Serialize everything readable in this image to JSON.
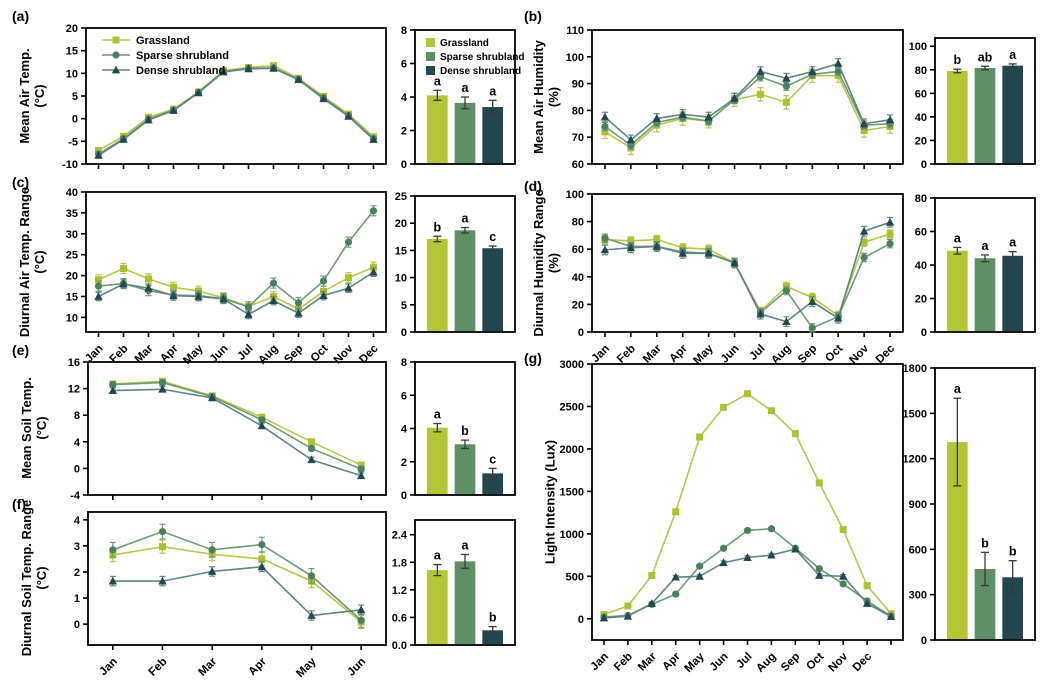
{
  "figure": {
    "background": "#ffffff"
  },
  "series_meta": [
    {
      "name": "Grassland",
      "marker": "square",
      "color": "#b4c636",
      "line_color": "#b9c64a",
      "marker_color": "#adc02f"
    },
    {
      "name": "Sparse shrubland",
      "marker": "circle",
      "color": "#5e8f67",
      "line_color": "#6e9b74",
      "marker_color": "#4c7f5e"
    },
    {
      "name": "Dense shrubland",
      "marker": "triangle",
      "color": "#24464e",
      "line_color": "#5f8585",
      "marker_color": "#24464e"
    }
  ],
  "chart_data": [
    {
      "id": "a",
      "label": "(a)",
      "ylabel": [
        "Mean Air Temp.",
        "(°C)"
      ],
      "line": {
        "type": "line",
        "show_xlabels": false,
        "legend": true,
        "x": [
          "Jan",
          "Feb",
          "Mar",
          "Apr",
          "May",
          "Jun",
          "Jul",
          "Aug",
          "Sep",
          "Oct",
          "Nov",
          "Dec"
        ],
        "ylim": [
          -10,
          20
        ],
        "yticks": [
          -10,
          -5,
          0,
          5,
          10,
          15,
          20
        ],
        "ydecimals": 0,
        "series": [
          {
            "name": "Grassland",
            "values": [
              -7.0,
              -3.9,
              0.3,
              2.1,
              5.9,
              10.6,
              11.3,
              11.7,
              8.9,
              4.9,
              1.0,
              -4.0
            ],
            "err": 0.5
          },
          {
            "name": "Sparse shrubland",
            "values": [
              -7.8,
              -4.4,
              -0.1,
              1.9,
              5.8,
              10.4,
              11.1,
              11.2,
              8.7,
              4.6,
              0.7,
              -4.4
            ],
            "err": 0.4
          },
          {
            "name": "Dense shrubland",
            "values": [
              -8.1,
              -4.6,
              -0.3,
              1.8,
              5.7,
              10.3,
              11.0,
              11.1,
              8.6,
              4.4,
              0.5,
              -4.6
            ],
            "err": 0.4
          }
        ]
      },
      "bar": {
        "type": "bar",
        "ylim": [
          0,
          8
        ],
        "yticks": [
          0,
          2,
          4,
          6,
          8
        ],
        "decimals": 0,
        "legend": true,
        "categories": [
          "Grassland",
          "Sparse shrubland",
          "Dense shrubland"
        ],
        "values": [
          4.1,
          3.65,
          3.4
        ],
        "err": [
          0.3,
          0.35,
          0.4
        ],
        "letters": [
          "a",
          "a",
          "a"
        ]
      }
    },
    {
      "id": "b",
      "label": "(b)",
      "ylabel": [
        "Mean Air Humidity",
        "(%)"
      ],
      "line": {
        "type": "line",
        "show_xlabels": false,
        "legend": false,
        "x": [
          "Jan",
          "Feb",
          "Mar",
          "Apr",
          "May",
          "Jun",
          "Jul",
          "Aug",
          "Sep",
          "Oct",
          "Nov",
          "Dec"
        ],
        "ylim": [
          60,
          110
        ],
        "yticks": [
          60,
          70,
          80,
          90,
          100,
          110
        ],
        "ydecimals": 0,
        "series": [
          {
            "name": "Grassland",
            "values": [
              72,
              66,
              74.5,
              77,
              76,
              84,
              86,
              83,
              93,
              93,
              72.5,
              74
            ],
            "err": 2.5
          },
          {
            "name": "Sparse shrubland",
            "values": [
              74,
              67,
              75.5,
              77.5,
              76,
              84,
              92.5,
              89,
              93.5,
              94.5,
              74.5,
              75
            ],
            "err": 1.5
          },
          {
            "name": "Dense shrubland",
            "values": [
              77.5,
              69,
              77,
              78.5,
              77.5,
              84.5,
              94.5,
              92,
              94.5,
              97.5,
              75,
              76.5
            ],
            "err": 1.8
          }
        ]
      },
      "bar": {
        "type": "bar",
        "ylim": [
          0,
          107
        ],
        "yticks": [
          0,
          20,
          40,
          60,
          80,
          100
        ],
        "decimals": 0,
        "legend": false,
        "categories": [
          "Grassland",
          "Sparse shrubland",
          "Dense shrubland"
        ],
        "values": [
          79,
          81.5,
          83.5
        ],
        "err": [
          1.5,
          1.5,
          1.5
        ],
        "letters": [
          "b",
          "ab",
          "a"
        ]
      }
    },
    {
      "id": "c",
      "label": "(c)",
      "ylabel": [
        "Diurnal Air Temp. Range",
        "(°C)"
      ],
      "line": {
        "type": "line",
        "show_xlabels": true,
        "legend": false,
        "x": [
          "Jan",
          "Feb",
          "Mar",
          "Apr",
          "May",
          "Jun",
          "Jul",
          "Aug",
          "Sep",
          "Oct",
          "Nov",
          "Dec"
        ],
        "ylim": [
          6.5,
          40
        ],
        "yticks": [
          10,
          15,
          20,
          25,
          30,
          35,
          40
        ],
        "ydecimals": 0,
        "series": [
          {
            "name": "Grassland",
            "values": [
              19,
              21.7,
              19.2,
              17.2,
              16.3,
              14.7,
              12.6,
              15,
              12,
              16.2,
              19.5,
              22
            ],
            "err": 1.2
          },
          {
            "name": "Sparse shrubland",
            "values": [
              17.5,
              18.1,
              16.4,
              15.3,
              15.2,
              14.5,
              12.5,
              18.2,
              13.5,
              18.7,
              28,
              35.5
            ],
            "err": 1.2
          },
          {
            "name": "Dense shrubland",
            "values": [
              15,
              18,
              17,
              15.2,
              15,
              14.4,
              10.7,
              14,
              11,
              15.2,
              17,
              20.8
            ],
            "err": 1.0
          }
        ]
      },
      "bar": {
        "type": "bar",
        "ylim": [
          0,
          25
        ],
        "yticks": [
          0,
          5,
          10,
          15,
          20,
          25
        ],
        "decimals": 0,
        "legend": false,
        "categories": [
          "Grassland",
          "Sparse shrubland",
          "Dense shrubland"
        ],
        "values": [
          17.1,
          18.7,
          15.4
        ],
        "err": [
          0.5,
          0.5,
          0.4
        ],
        "letters": [
          "b",
          "a",
          "c"
        ]
      }
    },
    {
      "id": "d",
      "label": "(d)",
      "ylabel": [
        "Diurnal Humidity Range",
        "(%)"
      ],
      "line": {
        "type": "line",
        "show_xlabels": true,
        "legend": false,
        "x": [
          "Jan",
          "Feb",
          "Mar",
          "Apr",
          "May",
          "Jun",
          "Jul",
          "Aug",
          "Sep",
          "Oct",
          "Nov",
          "Dec"
        ],
        "ylim": [
          0,
          100
        ],
        "yticks": [
          0,
          20,
          40,
          60,
          80,
          100
        ],
        "ydecimals": 0,
        "series": [
          {
            "name": "Grassland",
            "values": [
              67,
              66,
              67,
              61,
              60,
              50,
              15,
              33,
              25,
              12,
              65,
              71
            ],
            "err": 3
          },
          {
            "name": "Sparse shrubland",
            "values": [
              68,
              62,
              62,
              58,
              57,
              50,
              14,
              30,
              3,
              11,
              54,
              64
            ],
            "err": 3
          },
          {
            "name": "Dense shrubland",
            "values": [
              59.5,
              61,
              62,
              57,
              57,
              50,
              13,
              7.5,
              22,
              10,
              73,
              79.5
            ],
            "err": 3.5
          }
        ]
      },
      "bar": {
        "type": "bar",
        "ylim": [
          0,
          80
        ],
        "yticks": [
          0,
          20,
          40,
          60,
          80
        ],
        "decimals": 0,
        "legend": false,
        "categories": [
          "Grassland",
          "Sparse shrubland",
          "Dense shrubland"
        ],
        "values": [
          48.5,
          44,
          45.5
        ],
        "err": [
          2,
          2,
          2.5
        ],
        "letters": [
          "a",
          "a",
          "a"
        ]
      }
    },
    {
      "id": "e",
      "label": "(e)",
      "ylabel": [
        "Mean Soil Temp.",
        "(°C)"
      ],
      "line": {
        "type": "line",
        "show_xlabels": false,
        "legend": false,
        "x": [
          "Jan",
          "Feb",
          "Mar",
          "Apr",
          "May",
          "Jun"
        ],
        "ylim": [
          -4,
          16
        ],
        "yticks": [
          -4,
          0,
          4,
          8,
          12,
          16
        ],
        "ydecimals": 0,
        "series": [
          {
            "name": "Grassland",
            "values": [
              12.7,
              13.1,
              10.9,
              7.7,
              4.0,
              0.5
            ],
            "err": 0.4
          },
          {
            "name": "Sparse shrubland",
            "values": [
              12.6,
              12.9,
              10.8,
              7.3,
              3.0,
              -0.1
            ],
            "err": 0.4
          },
          {
            "name": "Dense shrubland",
            "values": [
              11.7,
              11.9,
              10.6,
              6.4,
              1.3,
              -1.1
            ],
            "err": 0.4
          }
        ]
      },
      "bar": {
        "type": "bar",
        "ylim": [
          0,
          8
        ],
        "yticks": [
          0,
          2,
          4,
          6,
          8
        ],
        "decimals": 0,
        "legend": false,
        "categories": [
          "Grassland",
          "Sparse shrubland",
          "Dense shrubland"
        ],
        "values": [
          4.05,
          3.05,
          1.3
        ],
        "err": [
          0.25,
          0.25,
          0.3
        ],
        "letters": [
          "a",
          "b",
          "c"
        ]
      }
    },
    {
      "id": "f",
      "label": "(f)",
      "ylabel": [
        "Diurnal Soil Temp. Range",
        "(°C)"
      ],
      "line": {
        "type": "line",
        "show_xlabels": true,
        "legend": false,
        "x": [
          "Jan",
          "Feb",
          "Mar",
          "Apr",
          "May",
          "Jun"
        ],
        "ylim": [
          -0.8,
          4.3
        ],
        "yticks": [
          0,
          1,
          2,
          3,
          4
        ],
        "ydecimals": 0,
        "series": [
          {
            "name": "Grassland",
            "values": [
              2.65,
              2.97,
              2.68,
              2.5,
              1.65,
              0.08
            ],
            "err": 0.25
          },
          {
            "name": "Sparse shrubland",
            "values": [
              2.85,
              3.55,
              2.85,
              3.05,
              1.85,
              0.15
            ],
            "err": 0.28
          },
          {
            "name": "Dense shrubland",
            "values": [
              1.65,
              1.65,
              2.02,
              2.2,
              0.33,
              0.55
            ],
            "err": 0.18
          }
        ]
      },
      "bar": {
        "type": "bar",
        "ylim": [
          0,
          2.72
        ],
        "yticks": [
          0,
          0.6,
          1.2,
          1.8,
          2.4
        ],
        "decimals": 1,
        "legend": false,
        "categories": [
          "Grassland",
          "Sparse shrubland",
          "Dense shrubland"
        ],
        "values": [
          1.63,
          1.82,
          0.32
        ],
        "err": [
          0.12,
          0.15,
          0.08
        ],
        "letters": [
          "a",
          "a",
          "b"
        ]
      }
    },
    {
      "id": "g",
      "label": "(g)",
      "ylabel": [
        "Light Intensity (Lux)"
      ],
      "line": {
        "type": "line",
        "show_xlabels": true,
        "legend": false,
        "x": [
          "Jan",
          "Feb",
          "Mar",
          "Apr",
          "May",
          "Jun",
          "Jul",
          "Aug",
          "Sep",
          "Oct",
          "Nov",
          "Dec",
          ""
        ],
        "ylim": [
          -250,
          3000
        ],
        "yticks": [
          0,
          500,
          1000,
          1500,
          2000,
          2500,
          3000
        ],
        "ydecimals": 0,
        "series": [
          {
            "name": "Grassland",
            "values": [
              50,
              150,
              510,
              1260,
              2140,
              2490,
              2650,
              2450,
              2180,
              1600,
              1050,
              390,
              60
            ],
            "err": 30
          },
          {
            "name": "Sparse shrubland",
            "values": [
              20,
              40,
              170,
              290,
              620,
              830,
              1040,
              1060,
              830,
              590,
              410,
              210,
              30
            ],
            "err": 20
          },
          {
            "name": "Dense shrubland",
            "values": [
              10,
              30,
              180,
              490,
              500,
              660,
              720,
              750,
              820,
              510,
              500,
              180,
              25
            ],
            "err": 20
          }
        ]
      },
      "bar": {
        "type": "bar",
        "ylim": [
          0,
          1800
        ],
        "yticks": [
          0,
          300,
          600,
          900,
          1200,
          1500,
          1800
        ],
        "decimals": 0,
        "legend": false,
        "categories": [
          "Grassland",
          "Sparse shrubland",
          "Dense shrubland"
        ],
        "values": [
          1310,
          470,
          415
        ],
        "err": [
          290,
          110,
          110
        ],
        "letters": [
          "a",
          "b",
          "b"
        ]
      }
    }
  ]
}
